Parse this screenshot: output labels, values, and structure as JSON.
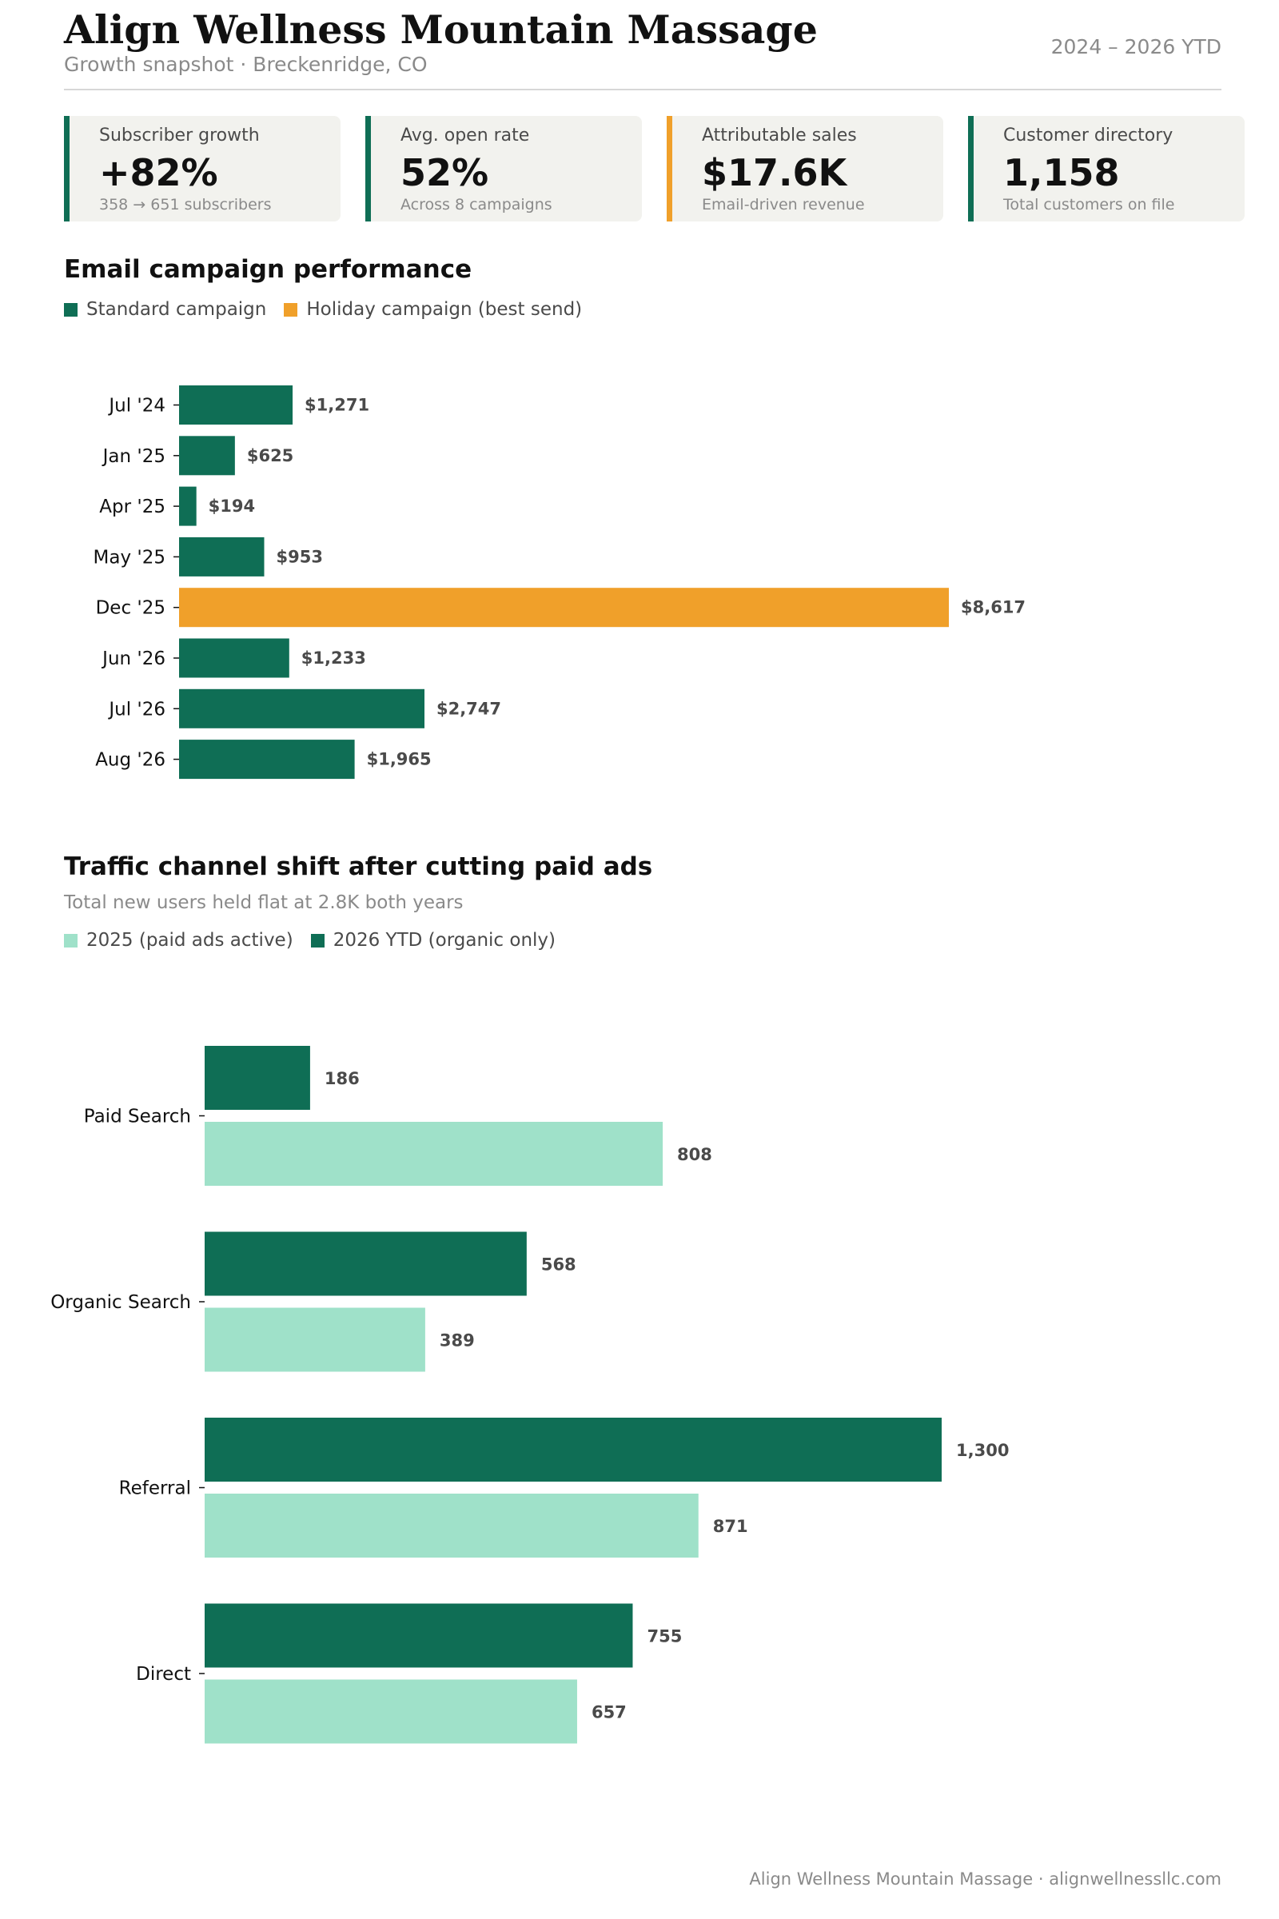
{
  "header": {
    "title": "Align Wellness Mountain Massage",
    "subtitle": "Growth snapshot  ·  Breckenridge, CO",
    "period": "2024 – 2026 YTD"
  },
  "kpis": [
    {
      "label": "Subscriber growth",
      "value": "+82%",
      "sub": "358 → 651 subscribers",
      "accent": "#0f6e55"
    },
    {
      "label": "Avg. open rate",
      "value": "52%",
      "sub": "Across 8 campaigns",
      "accent": "#0f6e55"
    },
    {
      "label": "Attributable sales",
      "value": "$17.6K",
      "sub": "Email-driven revenue",
      "accent": "#f0a02a"
    },
    {
      "label": "Customer directory",
      "value": "1,158",
      "sub": "Total customers on file",
      "accent": "#0f6e55"
    }
  ],
  "chart_data": [
    {
      "type": "bar",
      "orientation": "horizontal",
      "title": "Email campaign performance",
      "categories": [
        "Jul '24",
        "Jan '25",
        "Apr '25",
        "May '25",
        "Dec '25",
        "Jun '26",
        "Jul '26",
        "Aug '26"
      ],
      "values": [
        1271,
        625,
        194,
        953,
        8617,
        1233,
        2747,
        1965
      ],
      "value_labels": [
        "$1,271",
        "$625",
        "$194",
        "$953",
        "$8,617",
        "$1,233",
        "$2,747",
        "$1,965"
      ],
      "highlight_index": 4,
      "legend": [
        {
          "label": "Standard campaign",
          "color": "#0f6e55"
        },
        {
          "label": "Holiday campaign (best send)",
          "color": "#f0a02a"
        }
      ],
      "colors": {
        "standard": "#0f6e55",
        "highlight": "#f0a02a"
      },
      "legend_placement": "top-left",
      "grid": false
    },
    {
      "type": "bar",
      "orientation": "horizontal",
      "title": "Traffic channel shift after cutting paid ads",
      "subtitle": "Total new users held flat at 2.8K both years",
      "categories": [
        "Paid Search",
        "Organic Search",
        "Referral",
        "Direct"
      ],
      "series": [
        {
          "name": "2026 YTD (organic only)",
          "values": [
            186,
            568,
            1300,
            755
          ],
          "labels": [
            "186",
            "568",
            "1,300",
            "755"
          ],
          "color": "#0f6e55"
        },
        {
          "name": "2025 (paid ads active)",
          "values": [
            808,
            389,
            871,
            657
          ],
          "labels": [
            "808",
            "389",
            "871",
            "657"
          ],
          "color": "#9fe1c9"
        }
      ],
      "legend": [
        {
          "label": "2025 (paid ads active)",
          "color": "#9fe1c9"
        },
        {
          "label": "2026 YTD (organic only)",
          "color": "#0f6e55"
        }
      ],
      "legend_placement": "top-left",
      "grid": false
    }
  ],
  "footer": "Align Wellness Mountain Massage · alignwellnessllc.com"
}
